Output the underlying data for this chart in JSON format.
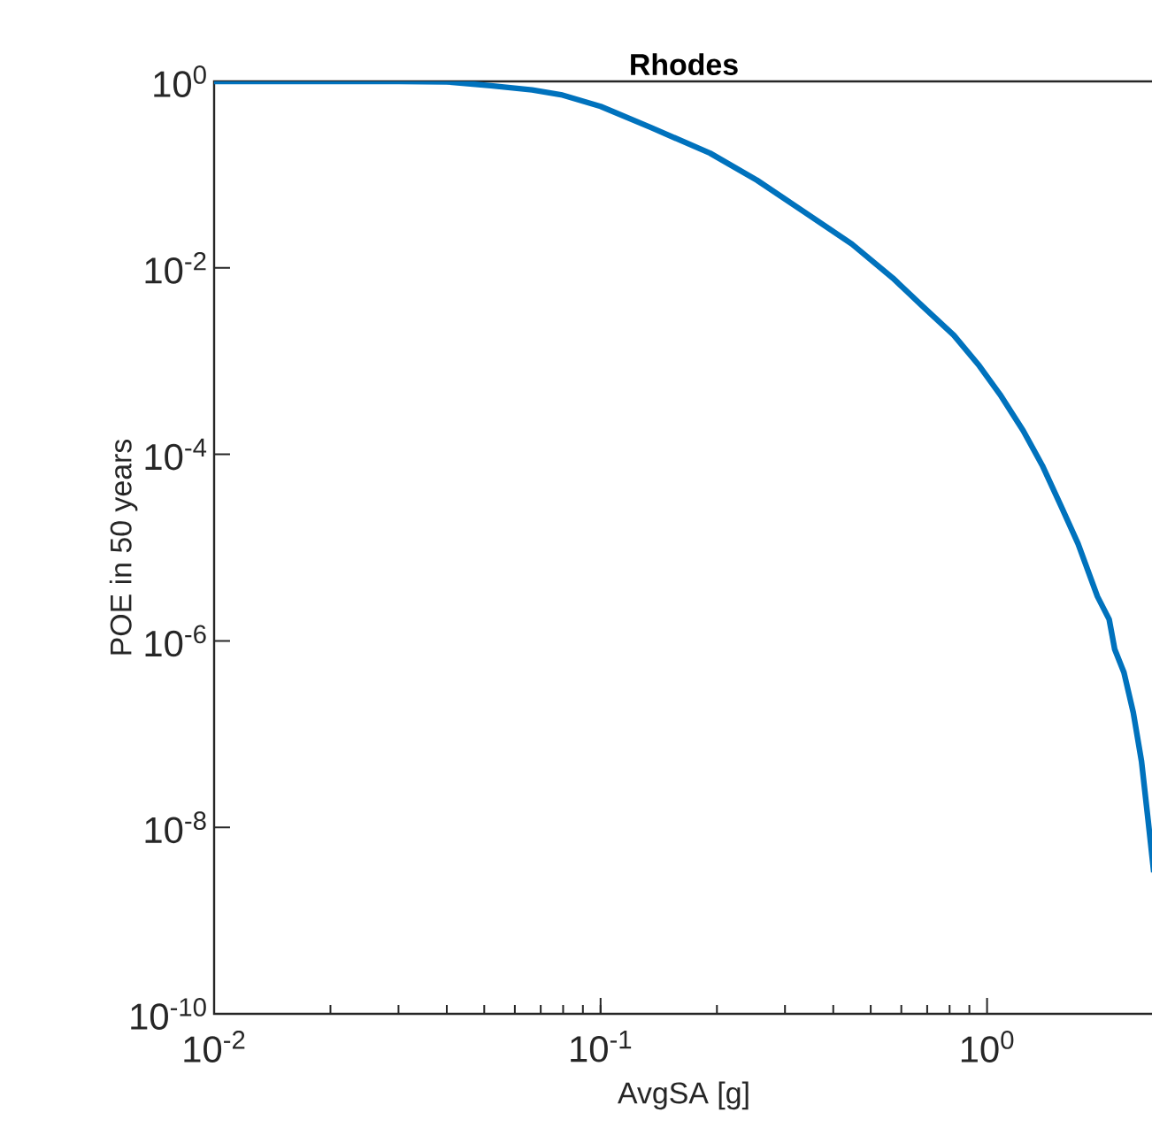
{
  "chart_data": {
    "type": "line",
    "title": "Rhodes",
    "xlabel": "AvgSA [g]",
    "ylabel": "POE in 50 years",
    "log": "xy",
    "grid": false,
    "marker": "none",
    "line_style": "solid",
    "xlim": [
      0.01,
      2.7
    ],
    "ylim": [
      1e-10,
      1
    ],
    "xticks": [
      {
        "value": 0.01,
        "label": "10$^{-2}$"
      },
      {
        "value": 0.1,
        "label": "10$^{-1}$"
      },
      {
        "value": 1,
        "label": "10$^{0}$"
      }
    ],
    "yticks": [
      {
        "value": 1e-10,
        "label": "10$^{-10}$"
      },
      {
        "value": 1e-08,
        "label": "10$^{-8}$"
      },
      {
        "value": 1e-06,
        "label": "10$^{-6}$"
      },
      {
        "value": 0.0001,
        "label": "10$^{-4}$"
      },
      {
        "value": 0.01,
        "label": "10$^{-2}$"
      },
      {
        "value": 1,
        "label": "10$^{0}$"
      }
    ],
    "series": [
      {
        "color": "#0072bd",
        "x": [
          0.01,
          0.02,
          0.03,
          0.04,
          0.052,
          0.0665,
          0.079,
          0.1,
          0.135,
          0.192,
          0.254,
          0.336,
          0.447,
          0.57,
          0.68,
          0.82,
          0.955,
          1.08,
          1.24,
          1.39,
          1.56,
          1.72,
          1.93,
          2.07,
          2.14,
          2.26,
          2.39,
          2.51,
          2.61,
          2.7
        ],
        "values": [
          1,
          1,
          1,
          0.99,
          0.9,
          0.81,
          0.72,
          0.54,
          0.32,
          0.17,
          0.087,
          0.04,
          0.018,
          0.0078,
          0.0039,
          0.0019,
          0.00089,
          0.00044,
          0.00018,
          7.6e-05,
          2.7e-05,
          1.1e-05,
          3e-06,
          1.7e-06,
          8.1e-07,
          4.6e-07,
          1.7e-07,
          5.1e-08,
          1.2e-08,
          3.3e-09
        ]
      }
    ]
  }
}
